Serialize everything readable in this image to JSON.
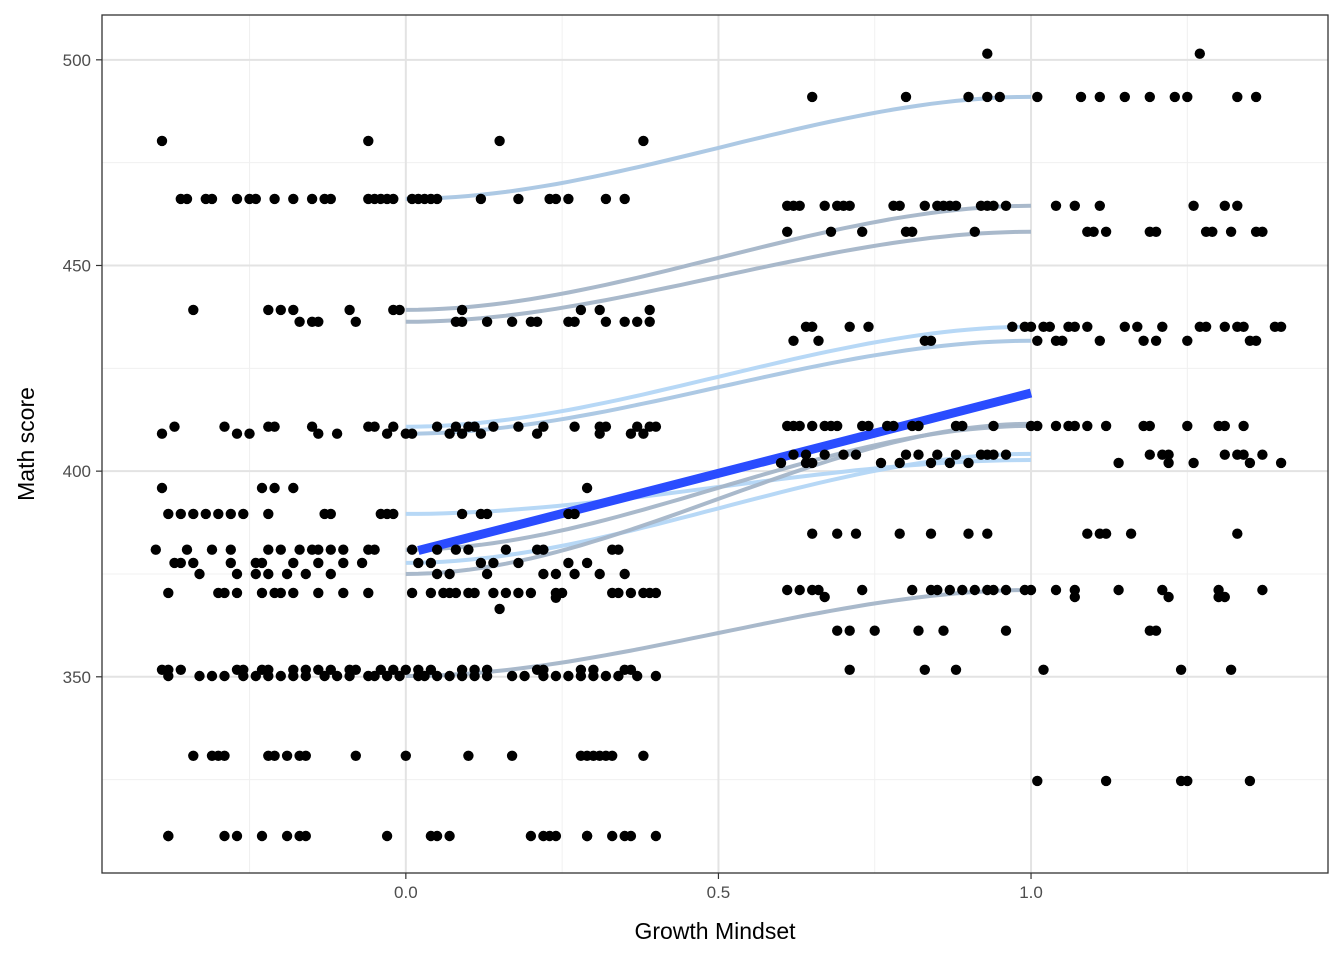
{
  "chart_data": {
    "type": "scatter",
    "title": "",
    "xlabel": "Growth Mindset",
    "ylabel": "Math score",
    "xlim": [
      -0.486,
      1.475
    ],
    "ylim": [
      302.3,
      510.9
    ],
    "x_ticks": [
      {
        "value": 0,
        "label": "0.0"
      },
      {
        "value": 0.5,
        "label": "0.5"
      },
      {
        "value": 1,
        "label": "1.0"
      }
    ],
    "y_ticks": [
      {
        "value": 350,
        "label": "350"
      },
      {
        "value": 400,
        "label": "400"
      },
      {
        "value": 450,
        "label": "450"
      },
      {
        "value": 500,
        "label": "500"
      }
    ],
    "x_minor": [
      -0.25,
      0.25,
      0.75,
      1.25
    ],
    "y_minor": [
      325,
      375,
      425,
      475
    ],
    "grid": true,
    "point_color": "#000000",
    "points": [
      {
        "y": 480.3,
        "x": [
          -0.39,
          -0.06,
          0.15,
          0.38
        ]
      },
      {
        "y": 466.2,
        "x": [
          -0.36,
          -0.35,
          -0.32,
          -0.31,
          -0.27,
          -0.25,
          -0.24,
          -0.21,
          -0.18,
          -0.15,
          -0.13,
          -0.12,
          -0.06,
          -0.05,
          -0.04,
          -0.03,
          -0.02,
          0.01,
          0.02,
          0.03,
          0.04,
          0.05,
          0.12,
          0.18,
          0.23,
          0.24,
          0.26,
          0.32,
          0.35
        ]
      },
      {
        "y": 439.2,
        "x": [
          -0.34,
          -0.22,
          -0.2,
          -0.18,
          -0.09,
          -0.02,
          -0.01,
          0.09,
          0.28,
          0.31,
          0.39
        ]
      },
      {
        "y": 436.3,
        "x": [
          -0.17,
          -0.15,
          -0.14,
          -0.08,
          0.08,
          0.09,
          0.13,
          0.17,
          0.2,
          0.21,
          0.26,
          0.27,
          0.32,
          0.35,
          0.37,
          0.39
        ]
      },
      {
        "y": 410.8,
        "x": [
          -0.37,
          -0.29,
          -0.22,
          -0.21,
          -0.15,
          -0.06,
          -0.05,
          -0.02,
          0.05,
          0.08,
          0.1,
          0.11,
          0.14,
          0.18,
          0.22,
          0.27,
          0.31,
          0.32,
          0.37,
          0.39,
          0.4
        ]
      },
      {
        "y": 409.1,
        "x": [
          -0.39,
          -0.27,
          -0.25,
          -0.14,
          -0.11,
          -0.03,
          0.0,
          0.01,
          0.07,
          0.09,
          0.12,
          0.21,
          0.31,
          0.36,
          0.38
        ]
      },
      {
        "y": 395.9,
        "x": [
          -0.39,
          -0.23,
          -0.21,
          -0.18,
          0.29
        ]
      },
      {
        "y": 389.6,
        "x": [
          -0.38,
          -0.36,
          -0.34,
          -0.32,
          -0.3,
          -0.28,
          -0.26,
          -0.22,
          -0.13,
          -0.12,
          -0.04,
          -0.03,
          -0.02,
          0.09,
          0.12,
          0.13,
          0.26,
          0.27
        ]
      },
      {
        "y": 380.9,
        "x": [
          -0.4,
          -0.35,
          -0.31,
          -0.28,
          -0.22,
          -0.2,
          -0.17,
          -0.15,
          -0.14,
          -0.12,
          -0.1,
          -0.06,
          -0.05,
          0.01,
          0.05,
          0.08,
          0.1,
          0.16,
          0.21,
          0.22,
          0.33,
          0.34
        ]
      },
      {
        "y": 377.7,
        "x": [
          -0.37,
          -0.36,
          -0.34,
          -0.28,
          -0.24,
          -0.23,
          -0.18,
          -0.14,
          -0.1,
          -0.07,
          0.02,
          0.04,
          0.12,
          0.14,
          0.18,
          0.26,
          0.29
        ]
      },
      {
        "y": 375.0,
        "x": [
          -0.33,
          -0.27,
          -0.24,
          -0.22,
          -0.19,
          -0.16,
          -0.12,
          0.05,
          0.07,
          0.13,
          0.22,
          0.24,
          0.27,
          0.31,
          0.35
        ]
      },
      {
        "y": 370.4,
        "x": [
          -0.38,
          -0.3,
          -0.29,
          -0.27,
          -0.23,
          -0.21,
          -0.2,
          -0.18,
          -0.14,
          -0.1,
          -0.06,
          0.01,
          0.04,
          0.06,
          0.07,
          0.08,
          0.1,
          0.11,
          0.14,
          0.16,
          0.18,
          0.2,
          0.24,
          0.25,
          0.33,
          0.34,
          0.36,
          0.38,
          0.39,
          0.4
        ]
      },
      {
        "y": 366.5,
        "x": [
          0.15
        ]
      },
      {
        "y": 369.2,
        "x": [
          0.24
        ]
      },
      {
        "y": 351.7,
        "x": [
          -0.39,
          -0.38,
          -0.36,
          -0.27,
          -0.26,
          -0.23,
          -0.22,
          -0.18,
          -0.16,
          -0.14,
          -0.12,
          -0.09,
          -0.08,
          -0.04,
          -0.02,
          0.0,
          0.02,
          0.04,
          0.09,
          0.11,
          0.13,
          0.21,
          0.22,
          0.28,
          0.3,
          0.35,
          0.36
        ]
      },
      {
        "y": 350.2,
        "x": [
          -0.38,
          -0.33,
          -0.31,
          -0.29,
          -0.26,
          -0.24,
          -0.22,
          -0.2,
          -0.18,
          -0.16,
          -0.13,
          -0.11,
          -0.09,
          -0.06,
          -0.05,
          -0.03,
          -0.01,
          0.02,
          0.03,
          0.05,
          0.07,
          0.09,
          0.11,
          0.13,
          0.17,
          0.19,
          0.22,
          0.24,
          0.26,
          0.28,
          0.3,
          0.32,
          0.34,
          0.37,
          0.4
        ]
      },
      {
        "y": 330.8,
        "x": [
          -0.34,
          -0.31,
          -0.3,
          -0.29,
          -0.22,
          -0.21,
          -0.19,
          -0.17,
          -0.16,
          -0.08,
          0.0,
          0.1,
          0.17,
          0.28,
          0.29,
          0.3,
          0.31,
          0.32,
          0.33,
          0.38
        ]
      },
      {
        "y": 311.3,
        "x": [
          -0.38,
          -0.38,
          -0.29,
          -0.27,
          -0.23,
          -0.19,
          -0.17,
          -0.16,
          -0.03,
          0.04,
          0.05,
          0.07,
          0.2,
          0.22,
          0.23,
          0.24,
          0.29,
          0.29,
          0.33,
          0.35,
          0.36,
          0.4
        ]
      },
      {
        "y": 501.5,
        "x": [
          0.93,
          1.27
        ]
      },
      {
        "y": 491.0,
        "x": [
          0.65,
          0.8,
          0.9,
          0.93,
          0.95,
          1.01,
          1.08,
          1.11,
          1.15,
          1.19,
          1.23,
          1.25,
          1.33,
          1.36
        ]
      },
      {
        "y": 464.5,
        "x": [
          0.61,
          0.62,
          0.63,
          0.67,
          0.69,
          0.7,
          0.71,
          0.78,
          0.79,
          0.83,
          0.85,
          0.86,
          0.87,
          0.88,
          0.92,
          0.93,
          0.94,
          0.96,
          1.04,
          1.07,
          1.11,
          1.26,
          1.31,
          1.33
        ]
      },
      {
        "y": 458.2,
        "x": [
          0.61,
          0.68,
          0.73,
          0.8,
          0.81,
          0.91,
          1.09,
          1.1,
          1.12,
          1.19,
          1.2,
          1.28,
          1.29,
          1.32,
          1.36,
          1.37
        ]
      },
      {
        "y": 435.1,
        "x": [
          0.64,
          0.65,
          0.71,
          0.74,
          0.97,
          0.99,
          1.0,
          1.02,
          1.03,
          1.06,
          1.07,
          1.09,
          1.15,
          1.17,
          1.21,
          1.27,
          1.28,
          1.31,
          1.33,
          1.34,
          1.39,
          1.4
        ]
      },
      {
        "y": 431.7,
        "x": [
          0.62,
          0.66,
          0.83,
          0.84,
          1.01,
          1.04,
          1.05,
          1.11,
          1.18,
          1.2,
          1.25,
          1.35,
          1.36
        ]
      },
      {
        "y": 411.0,
        "x": [
          0.61,
          0.62,
          0.63,
          0.65,
          0.67,
          0.68,
          0.69,
          0.73,
          0.74,
          0.77,
          0.78,
          0.81,
          0.82,
          0.88,
          0.89,
          0.94,
          1.0,
          1.01,
          1.04,
          1.06,
          1.07,
          1.09,
          1.12,
          1.18,
          1.19,
          1.25,
          1.3,
          1.31,
          1.34
        ]
      },
      {
        "y": 404.0,
        "x": [
          0.62,
          0.64,
          0.67,
          0.7,
          0.72,
          0.8,
          0.82,
          0.85,
          0.88,
          0.92,
          0.93,
          0.94,
          0.96,
          1.19,
          1.21,
          1.22,
          1.31,
          1.33,
          1.34,
          1.37
        ]
      },
      {
        "y": 402.0,
        "x": [
          0.6,
          0.64,
          0.65,
          0.76,
          0.79,
          0.84,
          0.87,
          0.9,
          1.14,
          1.22,
          1.26,
          1.35,
          1.4
        ]
      },
      {
        "y": 384.8,
        "x": [
          0.65,
          0.69,
          0.72,
          0.79,
          0.84,
          0.9,
          0.93,
          1.09,
          1.11,
          1.12,
          1.16,
          1.33
        ]
      },
      {
        "y": 371.1,
        "x": [
          0.61,
          0.63,
          0.65,
          0.66,
          0.73,
          0.81,
          0.84,
          0.85,
          0.87,
          0.89,
          0.91,
          0.93,
          0.94,
          0.96,
          0.99,
          1.0,
          1.04,
          1.07,
          1.14,
          1.21,
          1.3,
          1.37
        ]
      },
      {
        "y": 369.4,
        "x": [
          0.67,
          1.07,
          1.22,
          1.3,
          1.31
        ]
      },
      {
        "y": 361.2,
        "x": [
          0.69,
          0.71,
          0.75,
          0.82,
          0.86,
          0.96,
          1.19,
          1.2
        ]
      },
      {
        "y": 351.7,
        "x": [
          0.71,
          0.83,
          0.88,
          1.02,
          1.24,
          1.32
        ]
      },
      {
        "y": 324.7,
        "x": [
          1.01,
          1.12,
          1.24,
          1.25,
          1.35
        ]
      }
    ],
    "group_curves": [
      {
        "y0": 466.2,
        "y1": 491.0,
        "color": "#a9c6e3"
      },
      {
        "y0": 439.2,
        "y1": 464.5,
        "color": "#a4b5c8"
      },
      {
        "y0": 436.3,
        "y1": 458.2,
        "color": "#a4b5c8"
      },
      {
        "y0": 410.8,
        "y1": 435.1,
        "color": "#b3d6f5"
      },
      {
        "y0": 409.1,
        "y1": 431.7,
        "color": "#a9c6e3"
      },
      {
        "y0": 389.6,
        "y1": 402.7,
        "color": "#b3d6f5"
      },
      {
        "y0": 377.7,
        "y1": 404.2,
        "color": "#b3d6f5"
      },
      {
        "y0": 380.9,
        "y1": 411.0,
        "color": "#a4b5c8"
      },
      {
        "y0": 375.0,
        "y1": 411.5,
        "color": "#a4b5c8"
      },
      {
        "y0": 350.2,
        "y1": 371.1,
        "color": "#a4b5c8"
      }
    ],
    "fit_line": {
      "x": [
        0.02,
        1.0
      ],
      "y": [
        380.7,
        419.0
      ],
      "color": "#2a4cff"
    }
  }
}
